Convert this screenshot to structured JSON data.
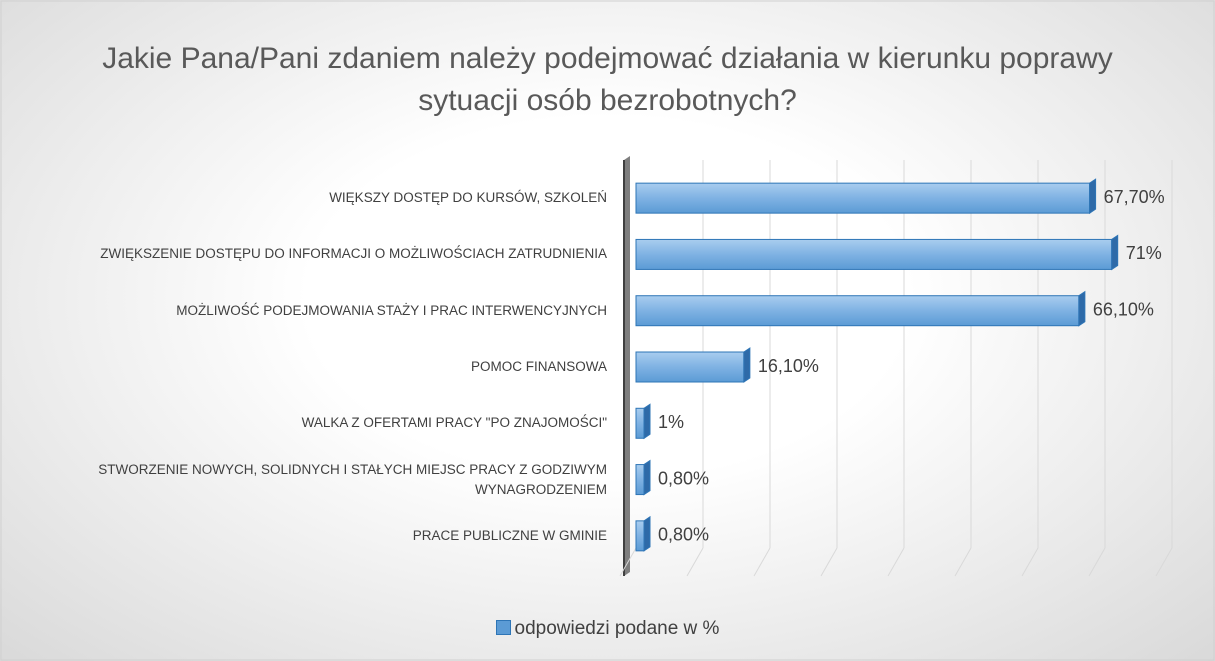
{
  "chart_data": {
    "type": "bar",
    "orientation": "horizontal",
    "title": "Jakie Pana/Pani zdaniem należy podejmować działania w kierunku poprawy sytuacji osób bezrobotnych?",
    "categories": [
      "WIĘKSZY DOSTĘP DO KURSÓW, SZKOLEŃ",
      "ZWIĘKSZENIE DOSTĘPU DO INFORMACJI O MOŻLIWOŚCIACH ZATRUDNIENIA",
      "MOŻLIWOŚĆ PODEJMOWANIA STAŻY I PRAC INTERWENCYJNYCH",
      "POMOC FINANSOWA",
      "WALKA Z OFERTAMI PRACY \"PO ZNAJOMOŚCI\"",
      "STWORZENIE NOWYCH, SOLIDNYCH I STAŁYCH MIEJSC PRACY Z GODZIWYM WYNAGRODZENIEM",
      "PRACE PUBLICZNE W GMINIE"
    ],
    "series": [
      {
        "name": "odpowiedzi podane w %",
        "color": "#5b9bd5",
        "values": [
          67.7,
          71,
          66.1,
          16.1,
          1,
          0.8,
          0.8
        ],
        "value_labels": [
          "67,70%",
          "71%",
          "66,10%",
          "16,10%",
          "1%",
          "0,80%",
          "0,80%"
        ]
      }
    ],
    "xlim": [
      0,
      80
    ],
    "xticks": [
      0,
      10,
      20,
      30,
      40,
      50,
      60,
      70,
      80
    ],
    "grid": true,
    "legend": "bottom"
  }
}
